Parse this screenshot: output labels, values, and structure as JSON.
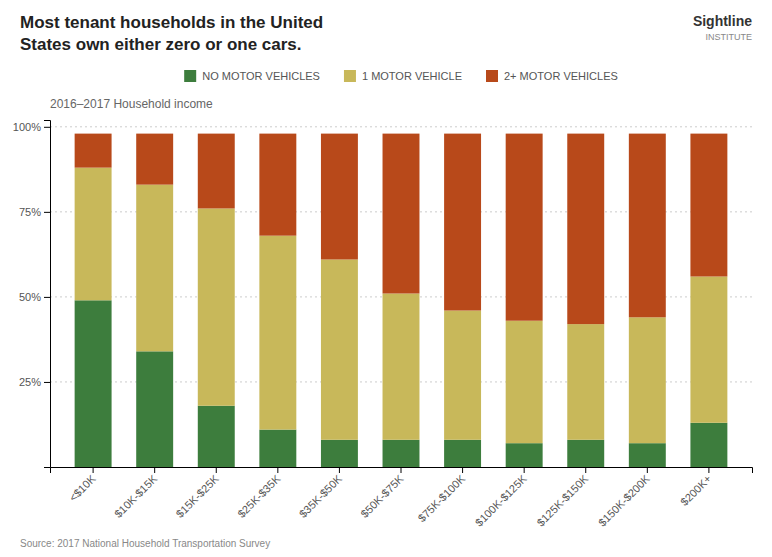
{
  "chart_data": {
    "type": "bar",
    "stacked": true,
    "title": "Most tenant households in the United\nStates own either zero or one cars.",
    "subtitle": "2016–2017 Household income",
    "annotations": [
      "Sightline",
      "INSTITUTE",
      "Source: 2017 National Household Transportation Survey"
    ],
    "categories": [
      "<$10K",
      "$10K-$15K",
      "$15K-$25K",
      "$25K-$35K",
      "$35K-$50K",
      "$50K-$75K",
      "$75K-$100K",
      "$100K-$125K",
      "$125K-$150K",
      "$150K-$200K",
      "$200K+"
    ],
    "series": [
      {
        "name": "NO MOTOR VEHICLES",
        "color": "#3d7d3d",
        "values": [
          49,
          34,
          18,
          11,
          8,
          8,
          8,
          7,
          8,
          7,
          13
        ]
      },
      {
        "name": "1 MOTOR VEHICLE",
        "color": "#c8b85a",
        "values": [
          39,
          49,
          58,
          57,
          53,
          43,
          38,
          36,
          34,
          37,
          43
        ]
      },
      {
        "name": "2+ MOTOR VEHICLES",
        "color": "#b8491a",
        "values": [
          10,
          15,
          22,
          30,
          37,
          47,
          52,
          55,
          56,
          54,
          42
        ]
      }
    ],
    "ylim": [
      0,
      102
    ],
    "yticks": [
      {
        "value": 25,
        "label": "25%"
      },
      {
        "value": 50,
        "label": "50%"
      },
      {
        "value": 75,
        "label": "75%"
      },
      {
        "value": 100,
        "label": "100%"
      }
    ],
    "grid": true,
    "legend": "top"
  }
}
